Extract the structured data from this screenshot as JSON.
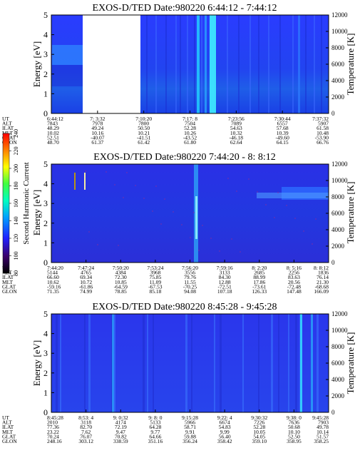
{
  "panels": [
    {
      "title": "EXOS-D/TED   Date:980220   6:44:12 - 7:44:12",
      "ylabel": "Energy [eV]",
      "y2label": "Temperature [K]",
      "yticks": [
        "0",
        "1",
        "2",
        "3",
        "4",
        "5"
      ],
      "y2ticks": [
        "0",
        "2000",
        "4000",
        "6000",
        "8000",
        "10000",
        "12000"
      ],
      "row_labels": [
        "UT",
        "ALT",
        "ILAT",
        "MLT",
        "GLAT",
        "GLON"
      ],
      "columns": [
        [
          "6:44:12",
          "7843",
          "48.29",
          "10.02",
          "52.51",
          "48.70"
        ],
        [
          "7: 3:32",
          "7978",
          "49.24",
          "10.16",
          "-40.07",
          "61.37"
        ],
        [
          "7:10:20",
          "7800",
          "50.50",
          "10.21",
          "-41.51",
          "61.42"
        ],
        [
          "7:17: 8",
          "7504",
          "52.28",
          "10.26",
          "-43.52",
          "61.80"
        ],
        [
          "7:23:56",
          "7089",
          "54.63",
          "10.32",
          "-46.18",
          "62.64"
        ],
        [
          "7:30:44",
          "6557",
          "57.68",
          "10.39",
          "-49.60",
          "64.15"
        ],
        [
          "7:37:32",
          "5907",
          "61.58",
          "10.48",
          "-53.90",
          "66.76"
        ]
      ]
    },
    {
      "title": "EXOS-D/TED   Date:980220   7:44:20 - 8: 8:12",
      "ylabel": "Energy [eV]",
      "y2label": "Temperature [K]",
      "yticks": [
        "0",
        "1",
        "2",
        "3",
        "4",
        "5"
      ],
      "y2ticks": [
        "0",
        "2000",
        "4000",
        "6000",
        "8000",
        "10000",
        "12000"
      ],
      "row_labels": [
        "UT",
        "ALT",
        "ILAT",
        "MLT",
        "GLAT",
        "GLON"
      ],
      "columns": [
        [
          "7:44:20",
          "5144",
          "66.60",
          "10.62",
          "-59.16",
          "71.35"
        ],
        [
          "7:47:24",
          "4765",
          "69.34",
          "10.72",
          "-61.86",
          "74.99"
        ],
        [
          "7:50:20",
          "4384",
          "72.30",
          "10.85",
          "-64.59",
          "78.85"
        ],
        [
          "7:53:24",
          "3968",
          "75.85",
          "11.09",
          "-67.53",
          "85.18"
        ],
        [
          "7:56:20",
          "3556",
          "79.76",
          "11.55",
          "-70.25",
          "94.08"
        ],
        [
          "7:59:16",
          "3133",
          "84.30",
          "12.88",
          "-72.51",
          "107.18"
        ],
        [
          "8: 2:20",
          "2685",
          "88.99",
          "17.86",
          "-73.61",
          "126.33"
        ],
        [
          "8: 5:16",
          "2256",
          "83.63",
          "20.56",
          "-72.48",
          "147.48"
        ],
        [
          "8: 8:12",
          "1836",
          "76.14",
          "21.30",
          "-68.68",
          "166.09"
        ]
      ]
    },
    {
      "title": "EXOS-D/TED   Date:980220   8:45:28 - 9:45:28",
      "ylabel": "Energy [eV]",
      "y2label": "Temperature [K]",
      "yticks": [
        "0",
        "1",
        "2",
        "3",
        "4",
        "5"
      ],
      "y2ticks": [
        "0",
        "2000",
        "4000",
        "6000",
        "8000",
        "10000",
        "12000"
      ],
      "row_labels": [
        "UT",
        "ALT",
        "ILAT",
        "MLT",
        "GLAT",
        "GLON"
      ],
      "columns": [
        [
          "8:45:28",
          "2010",
          "77.36",
          "23.22",
          "70.24",
          "248.16"
        ],
        [
          "8:53: 4",
          "3118",
          "82.70",
          "7.62",
          "76.07",
          "303.12"
        ],
        [
          "9: 0:32",
          "4174",
          "72.19",
          "9.47",
          "70.82",
          "338.59"
        ],
        [
          "9: 8: 0",
          "5133",
          "64.28",
          "9.77",
          "64.66",
          "351.16"
        ],
        [
          "9:15:28",
          "5966",
          "58.71",
          "9.91",
          "59.88",
          "356.24"
        ],
        [
          "9:22: 4",
          "6674",
          "54.83",
          "9.99",
          "56.40",
          "358.42"
        ],
        [
          "9:30:32",
          "7226",
          "52.28",
          "10.05",
          "54.05",
          "359.10"
        ],
        [
          "9:38: 0",
          "7636",
          "50.68",
          "10.10",
          "52.50",
          "358.95"
        ],
        [
          "9:45:28",
          "7903",
          "49.78",
          "10.14",
          "51.57",
          "358.25"
        ]
      ]
    }
  ],
  "colorbar": {
    "label": "Second Harmonic Current",
    "ticks": [
      "80",
      "100",
      "120",
      "140",
      "160",
      "180",
      "200",
      "220",
      "240"
    ],
    "colors": [
      "#000000",
      "#3a006a",
      "#2020ff",
      "#00a0ff",
      "#00ffc0",
      "#40ff40",
      "#ffff00",
      "#ff8000",
      "#ff0000"
    ]
  },
  "chart_data": [
    {
      "type": "heatmap",
      "title": "EXOS-D/TED   Date:980220   6:44:12 - 7:44:12",
      "ylabel": "Energy [eV]",
      "y2label": "Temperature [K]",
      "ylim": [
        0,
        5
      ],
      "y2lim": [
        0,
        12000
      ],
      "x": [
        "6:44:12",
        "7: 3:32",
        "7:10:20",
        "7:17: 8",
        "7:23:56",
        "7:30:44",
        "7:37:32"
      ],
      "data_gap": [
        "6:50",
        "7:00"
      ]
    },
    {
      "type": "heatmap",
      "title": "EXOS-D/TED   Date:980220   7:44:20 - 8: 8:12",
      "ylabel": "Energy [eV]",
      "y2label": "Temperature [K]",
      "ylim": [
        0,
        5
      ],
      "y2lim": [
        0,
        12000
      ],
      "x": [
        "7:44:20",
        "7:47:24",
        "7:50:20",
        "7:53:24",
        "7:56:20",
        "7:59:16",
        "8: 2:20",
        "8: 5:16",
        "8: 8:12"
      ]
    },
    {
      "type": "heatmap",
      "title": "EXOS-D/TED   Date:980220   8:45:28 - 9:45:28",
      "ylabel": "Energy [eV]",
      "y2label": "Temperature [K]",
      "ylim": [
        0,
        5
      ],
      "y2lim": [
        0,
        12000
      ],
      "x": [
        "8:45:28",
        "8:53: 4",
        "9: 0:32",
        "9: 8: 0",
        "9:15:28",
        "9:22: 4",
        "9:30:32",
        "9:38: 0",
        "9:45:28"
      ]
    }
  ]
}
